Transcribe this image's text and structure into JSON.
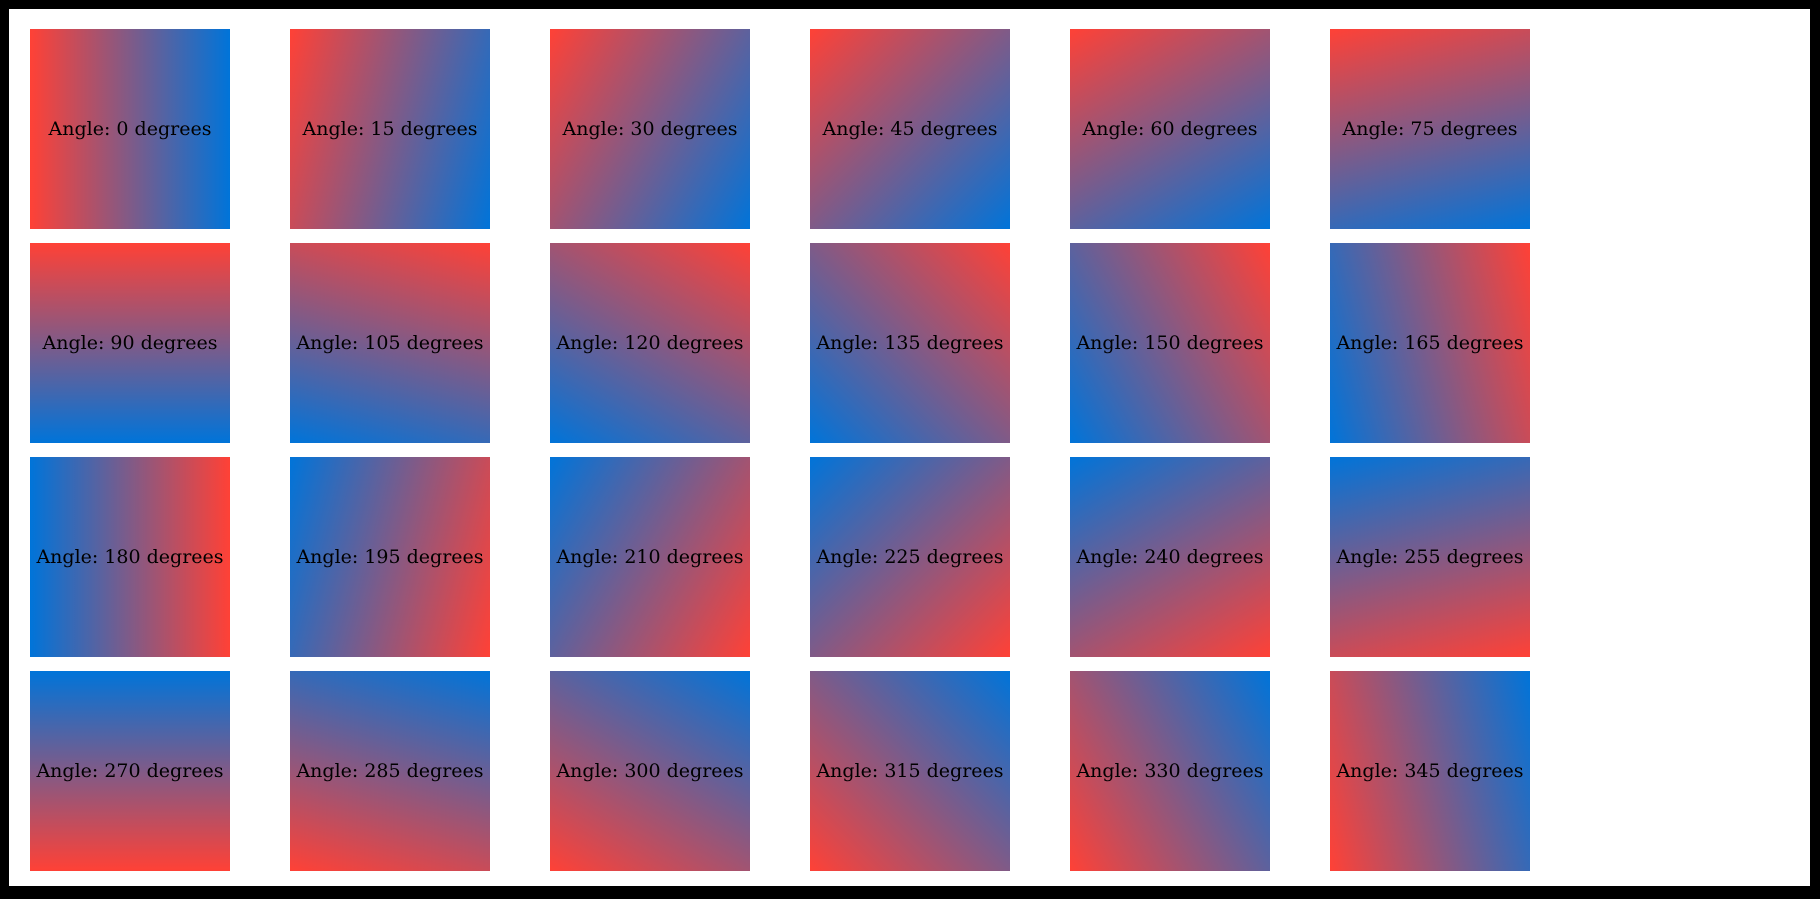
{
  "page": {
    "frame_color": "#000000",
    "background_color": "#ffffff"
  },
  "gradient": {
    "start_color": "#ff4136",
    "end_color": "#0074d9",
    "angle_convention": "0 degrees points right (red left, blue right); 90 degrees points down (red top, blue bottom)"
  },
  "label_format": {
    "prefix": "Angle: ",
    "suffix": " degrees"
  },
  "grid": {
    "columns": 6,
    "rows": 4
  },
  "tiles": [
    {
      "angle": 0,
      "label": "Angle: 0 degrees"
    },
    {
      "angle": 15,
      "label": "Angle: 15 degrees"
    },
    {
      "angle": 30,
      "label": "Angle: 30 degrees"
    },
    {
      "angle": 45,
      "label": "Angle: 45 degrees"
    },
    {
      "angle": 60,
      "label": "Angle: 60 degrees"
    },
    {
      "angle": 75,
      "label": "Angle: 75 degrees"
    },
    {
      "angle": 90,
      "label": "Angle: 90 degrees"
    },
    {
      "angle": 105,
      "label": "Angle: 105 degrees"
    },
    {
      "angle": 120,
      "label": "Angle: 120 degrees"
    },
    {
      "angle": 135,
      "label": "Angle: 135 degrees"
    },
    {
      "angle": 150,
      "label": "Angle: 150 degrees"
    },
    {
      "angle": 165,
      "label": "Angle: 165 degrees"
    },
    {
      "angle": 180,
      "label": "Angle: 180 degrees"
    },
    {
      "angle": 195,
      "label": "Angle: 195 degrees"
    },
    {
      "angle": 210,
      "label": "Angle: 210 degrees"
    },
    {
      "angle": 225,
      "label": "Angle: 225 degrees"
    },
    {
      "angle": 240,
      "label": "Angle: 240 degrees"
    },
    {
      "angle": 255,
      "label": "Angle: 255 degrees"
    },
    {
      "angle": 270,
      "label": "Angle: 270 degrees"
    },
    {
      "angle": 285,
      "label": "Angle: 285 degrees"
    },
    {
      "angle": 300,
      "label": "Angle: 300 degrees"
    },
    {
      "angle": 315,
      "label": "Angle: 315 degrees"
    },
    {
      "angle": 330,
      "label": "Angle: 330 degrees"
    },
    {
      "angle": 345,
      "label": "Angle: 345 degrees"
    }
  ]
}
